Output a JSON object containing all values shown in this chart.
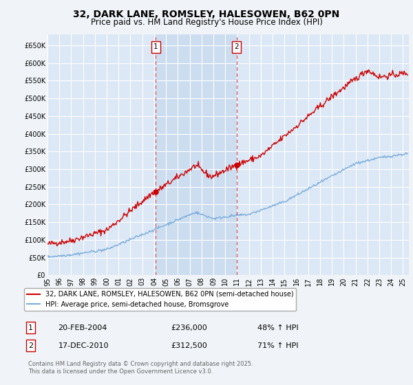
{
  "title_line1": "32, DARK LANE, ROMSLEY, HALESOWEN, B62 0PN",
  "title_line2": "Price paid vs. HM Land Registry's House Price Index (HPI)",
  "background_color": "#f0f4f8",
  "plot_bg_color": "#dce8f5",
  "plot_bg_highlight": "#ccddf0",
  "ylim": [
    0,
    680000
  ],
  "yticks": [
    0,
    50000,
    100000,
    150000,
    200000,
    250000,
    300000,
    350000,
    400000,
    450000,
    500000,
    550000,
    600000,
    650000
  ],
  "ytick_labels": [
    "£0",
    "£50K",
    "£100K",
    "£150K",
    "£200K",
    "£250K",
    "£300K",
    "£350K",
    "£400K",
    "£450K",
    "£500K",
    "£550K",
    "£600K",
    "£650K"
  ],
  "xlim_start": 1995.0,
  "xlim_end": 2025.5,
  "xtick_years": [
    1995,
    1996,
    1997,
    1998,
    1999,
    2000,
    2001,
    2002,
    2003,
    2004,
    2005,
    2006,
    2007,
    2008,
    2009,
    2010,
    2011,
    2012,
    2013,
    2014,
    2015,
    2016,
    2017,
    2018,
    2019,
    2020,
    2021,
    2022,
    2023,
    2024,
    2025
  ],
  "vline1_x": 2004.13,
  "vline2_x": 2010.96,
  "marker1_y_red": 236000,
  "marker2_y_red": 312500,
  "legend_entries": [
    "32, DARK LANE, ROMSLEY, HALESOWEN, B62 0PN (semi-detached house)",
    "HPI: Average price, semi-detached house, Bromsgrove"
  ],
  "legend_colors": [
    "#cc0000",
    "#7aaddd"
  ],
  "footer_text": "Contains HM Land Registry data © Crown copyright and database right 2025.\nThis data is licensed under the Open Government Licence v3.0.",
  "red_line_color": "#cc0000",
  "blue_line_color": "#7aaddd",
  "grid_color": "#ffffff",
  "vline_color": "#dd5555",
  "title_fontsize": 10,
  "subtitle_fontsize": 8.5
}
